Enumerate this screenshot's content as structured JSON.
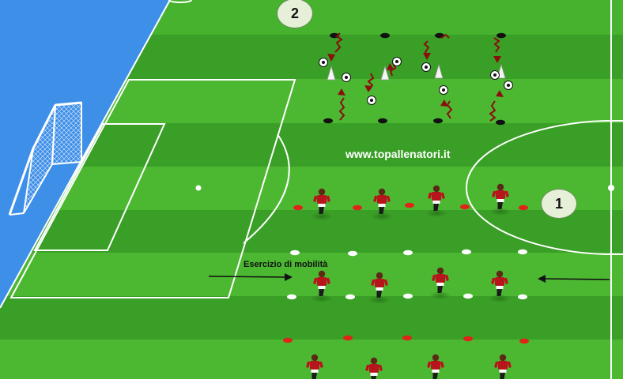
{
  "diagram": {
    "station_labels": {
      "station_1": "1",
      "station_2": "2"
    },
    "watermark": "www.topallenatori.it",
    "drill_caption": "Esercizio di mobilità",
    "colors": {
      "pitch_light": "#4cb832",
      "pitch_dark": "#3a9f26",
      "sea_blue": "#3e8fe8",
      "player_shirt": "#b8141c",
      "cone_red": "#e02418",
      "cone_white": "#ffffff",
      "marker_black": "#111111",
      "path_dark_red": "#8a0e0e"
    },
    "icons": [
      "goal-net-icon",
      "soccer-ball-icon",
      "cone-icon",
      "flat-marker-icon",
      "player-icon",
      "arrow-icon",
      "dribble-path-icon"
    ]
  }
}
